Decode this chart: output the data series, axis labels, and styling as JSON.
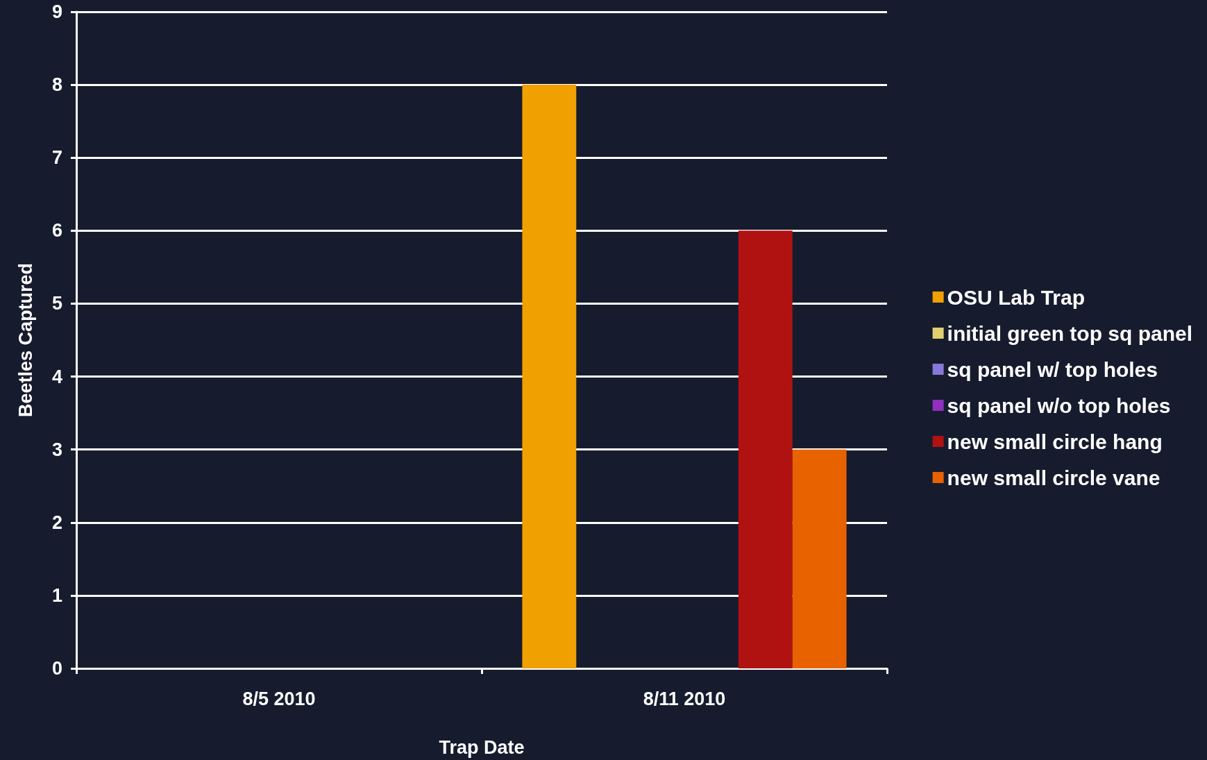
{
  "chart_data": {
    "type": "bar",
    "xlabel": "Trap Date",
    "ylabel": "Beetles Captured",
    "categories": [
      "8/5 2010",
      "8/11 2010"
    ],
    "series": [
      {
        "name": "OSU Lab Trap",
        "color": "#f0a000",
        "values": [
          null,
          8
        ]
      },
      {
        "name": "initial green top sq panel",
        "color": "#e0d070",
        "values": [
          null,
          null
        ]
      },
      {
        "name": "sq panel w/ top holes",
        "color": "#8878d8",
        "values": [
          null,
          null
        ]
      },
      {
        "name": "sq panel w/o top holes",
        "color": "#9030c0",
        "values": [
          null,
          null
        ]
      },
      {
        "name": "new small circle hang",
        "color": "#b01212",
        "values": [
          null,
          6
        ]
      },
      {
        "name": "new small circle vane",
        "color": "#e86200",
        "values": [
          null,
          3
        ]
      }
    ],
    "ylim": [
      0,
      9
    ],
    "yticks": [
      0,
      1,
      2,
      3,
      4,
      5,
      6,
      7,
      8,
      9
    ],
    "grid": "y",
    "legend": "right"
  }
}
